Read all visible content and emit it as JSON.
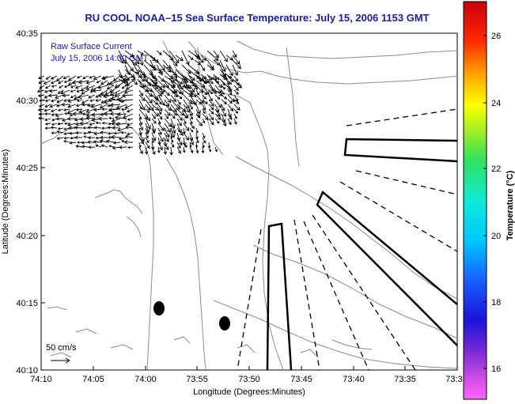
{
  "title": "RU COOL  NOAA–15  Sea Surface Temperature:  July 15, 2006 1153 GMT",
  "legend": {
    "line1": "Raw Surface Current",
    "line2": "July 15, 2006 14:00 GMT",
    "scale_label": "50 cm/s"
  },
  "x_axis": {
    "label": "Longitude (Degrees:Minutes)",
    "ticks": [
      "74:10",
      "74:05",
      "74:00",
      "73:55",
      "73:50",
      "73:45",
      "73:40",
      "73:35",
      "73:3"
    ]
  },
  "y_axis": {
    "label": "Latitude (Degrees:Minutes)",
    "ticks": [
      "40:35",
      "40:30",
      "40:25",
      "40:20",
      "40:15",
      "40:10"
    ]
  },
  "colorbar": {
    "label": "Temperature (°C)",
    "ticks": [
      "26",
      "24",
      "22",
      "20",
      "18",
      "16"
    ]
  },
  "colors": {
    "title": "#1a1aa6",
    "contour": "#8c8c8c",
    "vectors": "#000000"
  },
  "map_data": {
    "lon_range_deg": [
      -74.1667,
      -73.5
    ],
    "lat_range_deg": [
      40.1667,
      40.5833
    ],
    "stations": [
      {
        "lon": -73.9783,
        "lat": 40.245
      },
      {
        "lon": -73.905,
        "lat": 40.225
      }
    ]
  }
}
